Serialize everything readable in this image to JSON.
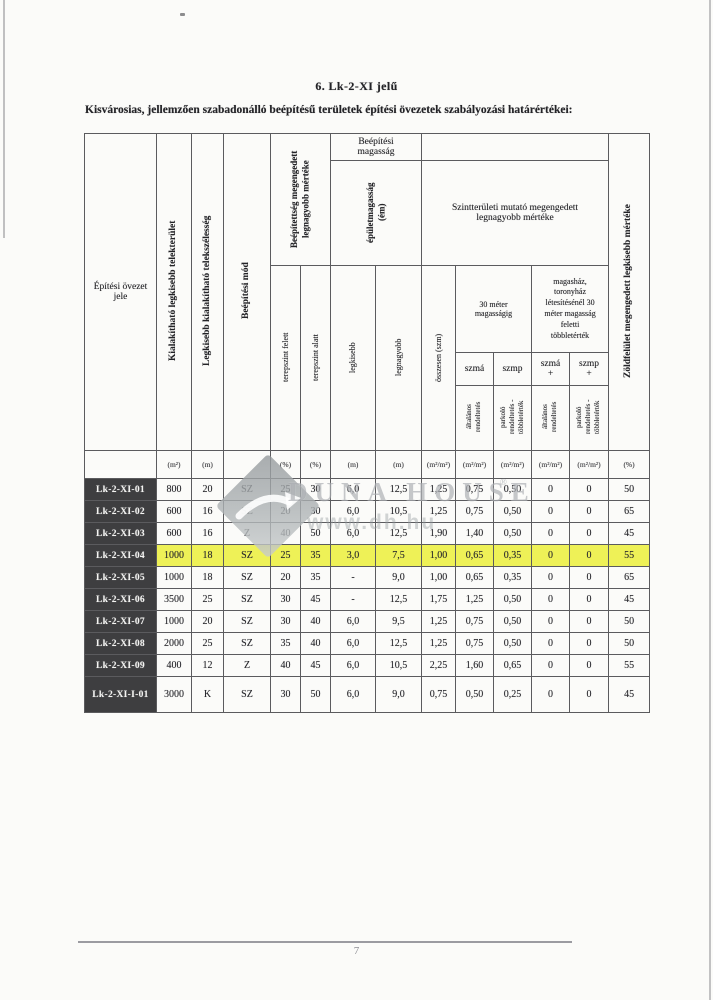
{
  "page": {
    "title": "6.   Lk-2-XI jelű",
    "subtitle": "Kisvárosias, jellemzően szabadonálló beépítésű területek építési övezetek szabályozási határértékei:",
    "page_number": "7"
  },
  "watermark": {
    "brand": "DUNA HOUSE",
    "trademark": "®",
    "url": "www.dh.hu",
    "logo": "duna-house-diamond"
  },
  "colors": {
    "highlight_row": "#eef157",
    "zone_label_bg": "#3e3e40",
    "paper": "#fbfbf9"
  },
  "table": {
    "header": {
      "col_zone": "Építési övezet\njele",
      "col_lot_area": "Kialakítható legkisebb telekterület",
      "col_lot_width": "Legkisebb kialakítható telekszélesség",
      "col_build_mode": "Beépítési mód",
      "grp_coverage": "Beépítettség megengedett\nlegnagyobb mértéke",
      "col_above_ground": "terepszint felett",
      "col_below_ground": "terepszint alatt",
      "grp_height": "Beépítési\nmagasság",
      "sub_building_height": "épületmagasság\n(ém)",
      "col_height_min": "legkisebb",
      "col_height_max": "legnagyobb",
      "grp_floor_area_ratio": "Szintterületi mutató megengedett\nlegnagyobb mértéke",
      "col_total": "összesen (szm)",
      "grp_up_to_30m": "30 méter\nmagasságig",
      "grp_above_30m": "magasház,\ntoronyház\nlétesítésénél 30\nméter magasság\nfeletti\ntöbbletérték",
      "col_szma": "szmá",
      "col_szmp": "szmp",
      "col_szma_plus": "szmá\n+",
      "col_szmp_plus": "szmp\n+",
      "sub_general_1": "általános\nrendeltetés",
      "sub_parking_1": "parkoló\nrendeltetés -\ntöbbletérték",
      "sub_general_2": "általános\nrendeltetés",
      "sub_parking_2": "parkoló\nrendeltetés -\ntöbbletérték",
      "col_green": "Zöldfelület megengedett legkisebb mértéke"
    },
    "units": [
      "(m²)",
      "(m)",
      "",
      "(%)",
      "(%)",
      "(m)",
      "(m)",
      "(m²/m²)",
      "(m²/m²)",
      "(m²/m²)",
      "(m²/m²)",
      "(m²/m²)",
      "(%)"
    ],
    "rows": [
      {
        "zone": "Lk-2-XI-01",
        "highlight": false,
        "values": [
          "800",
          "20",
          "SZ",
          "25",
          "30",
          "6,0",
          "12,5",
          "1,25",
          "0,75",
          "0,50",
          "0",
          "0",
          "50"
        ]
      },
      {
        "zone": "Lk-2-XI-02",
        "highlight": false,
        "values": [
          "600",
          "16",
          "SZ",
          "20",
          "30",
          "6,0",
          "10,5",
          "1,25",
          "0,75",
          "0,50",
          "0",
          "0",
          "65"
        ]
      },
      {
        "zone": "Lk-2-XI-03",
        "highlight": false,
        "values": [
          "600",
          "16",
          "Z",
          "40",
          "50",
          "6,0",
          "12,5",
          "1,90",
          "1,40",
          "0,50",
          "0",
          "0",
          "45"
        ]
      },
      {
        "zone": "Lk-2-XI-04",
        "highlight": true,
        "values": [
          "1000",
          "18",
          "SZ",
          "25",
          "35",
          "3,0",
          "7,5",
          "1,00",
          "0,65",
          "0,35",
          "0",
          "0",
          "55"
        ]
      },
      {
        "zone": "Lk-2-XI-05",
        "highlight": false,
        "values": [
          "1000",
          "18",
          "SZ",
          "20",
          "35",
          "-",
          "9,0",
          "1,00",
          "0,65",
          "0,35",
          "0",
          "0",
          "65"
        ]
      },
      {
        "zone": "Lk-2-XI-06",
        "highlight": false,
        "values": [
          "3500",
          "25",
          "SZ",
          "30",
          "45",
          "-",
          "12,5",
          "1,75",
          "1,25",
          "0,50",
          "0",
          "0",
          "45"
        ]
      },
      {
        "zone": "Lk-2-XI-07",
        "highlight": false,
        "values": [
          "1000",
          "20",
          "SZ",
          "30",
          "40",
          "6,0",
          "9,5",
          "1,25",
          "0,75",
          "0,50",
          "0",
          "0",
          "50"
        ]
      },
      {
        "zone": "Lk-2-XI-08",
        "highlight": false,
        "values": [
          "2000",
          "25",
          "SZ",
          "35",
          "40",
          "6,0",
          "12,5",
          "1,25",
          "0,75",
          "0,50",
          "0",
          "0",
          "50"
        ]
      },
      {
        "zone": "Lk-2-XI-09",
        "highlight": false,
        "values": [
          "400",
          "12",
          "Z",
          "40",
          "45",
          "6,0",
          "10,5",
          "2,25",
          "1,60",
          "0,65",
          "0",
          "0",
          "55"
        ]
      },
      {
        "zone": "Lk-2-XI-I-01",
        "highlight": false,
        "values": [
          "3000",
          "K",
          "SZ",
          "30",
          "50",
          "6,0",
          "9,0",
          "0,75",
          "0,50",
          "0,25",
          "0",
          "0",
          "45"
        ]
      }
    ]
  }
}
